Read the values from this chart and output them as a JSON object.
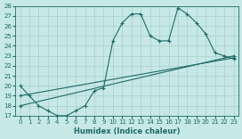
{
  "xlabel": "Humidex (Indice chaleur)",
  "xlim": [
    -0.5,
    23.5
  ],
  "ylim": [
    17,
    28
  ],
  "yticks": [
    17,
    18,
    19,
    20,
    21,
    22,
    23,
    24,
    25,
    26,
    27,
    28
  ],
  "xticks": [
    0,
    1,
    2,
    3,
    4,
    5,
    6,
    7,
    8,
    9,
    10,
    11,
    12,
    13,
    14,
    15,
    16,
    17,
    18,
    19,
    20,
    21,
    22,
    23
  ],
  "background_color": "#c6e8e6",
  "grid_color": "#aacfcd",
  "line_color": "#1e6b68",
  "line1_x": [
    0,
    1,
    2,
    3,
    4,
    5,
    6,
    7,
    8,
    9,
    10,
    11,
    12,
    13,
    14,
    15,
    16,
    17,
    18,
    19,
    20,
    21,
    22,
    23
  ],
  "line1_y": [
    20,
    19,
    18,
    17.5,
    17,
    17,
    17.5,
    18,
    19.5,
    19.8,
    24.5,
    26.3,
    27.2,
    27.2,
    25.0,
    24.5,
    24.5,
    27.8,
    27.2,
    26.3,
    25.2,
    23.3,
    23.0,
    22.7
  ],
  "line2_x": [
    0,
    23
  ],
  "line2_y": [
    18.0,
    23.0
  ],
  "line3_x": [
    0,
    23
  ],
  "line3_y": [
    19.0,
    22.8
  ]
}
